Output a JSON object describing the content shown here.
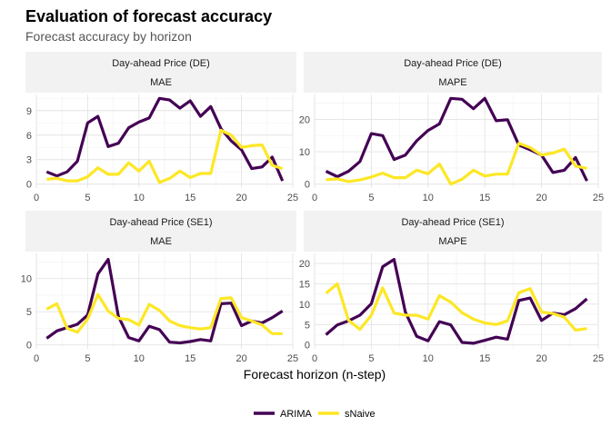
{
  "title": "Evaluation of forecast accuracy",
  "subtitle": "Forecast accuracy by horizon",
  "chart_data": {
    "type": "line",
    "xlabel": "Forecast horizon (n-step)",
    "ylabel": "",
    "legend": {
      "position": "bottom",
      "entries": [
        "ARIMA",
        "sNaive"
      ]
    },
    "colors": {
      "ARIMA": "#440154",
      "sNaive": "#FDE725"
    },
    "grid": true,
    "x": [
      1,
      2,
      3,
      4,
      5,
      6,
      7,
      8,
      9,
      10,
      11,
      12,
      13,
      14,
      15,
      16,
      17,
      18,
      19,
      20,
      21,
      22,
      23,
      24
    ],
    "xlim": [
      0,
      25
    ],
    "x_ticks": [
      0,
      5,
      10,
      15,
      20,
      25
    ],
    "panels": [
      {
        "strip": [
          "Day-ahead Price (DE)",
          "MAE"
        ],
        "ylim": [
          0,
          10.5
        ],
        "y_ticks": [
          0,
          3,
          6,
          9
        ],
        "series": [
          {
            "name": "ARIMA",
            "values": [
              1.5,
              1.0,
              1.5,
              2.8,
              7.5,
              8.3,
              4.6,
              5.0,
              6.9,
              7.6,
              8.1,
              10.5,
              10.3,
              9.3,
              10.2,
              8.3,
              9.5,
              6.8,
              5.3,
              4.2,
              1.9,
              2.1,
              3.3,
              0.4
            ]
          },
          {
            "name": "sNaive",
            "values": [
              0.6,
              0.7,
              0.4,
              0.4,
              0.9,
              2.0,
              1.2,
              1.2,
              2.6,
              1.6,
              2.8,
              0.2,
              0.7,
              1.6,
              0.8,
              1.3,
              1.3,
              6.6,
              6.0,
              4.5,
              4.7,
              4.8,
              2.3,
              1.9
            ]
          }
        ]
      },
      {
        "strip": [
          "Day-ahead Price (DE)",
          "MAPE"
        ],
        "ylim": [
          0,
          26.5
        ],
        "y_ticks": [
          0,
          10,
          20
        ],
        "series": [
          {
            "name": "ARIMA",
            "values": [
              4.0,
              2.3,
              4.0,
              7.0,
              15.6,
              15.0,
              7.6,
              9.0,
              13.4,
              16.6,
              18.6,
              26.5,
              26.2,
              23.3,
              26.5,
              19.6,
              19.9,
              12.1,
              10.6,
              9.0,
              3.6,
              4.3,
              8.2,
              1.0
            ]
          },
          {
            "name": "sNaive",
            "values": [
              1.4,
              1.6,
              0.8,
              1.3,
              2.2,
              3.4,
              2.0,
              2.0,
              4.3,
              3.2,
              6.2,
              0.0,
              1.5,
              4.3,
              2.5,
              3.1,
              3.1,
              12.6,
              11.3,
              9.0,
              9.6,
              10.8,
              5.6,
              4.9
            ]
          }
        ]
      },
      {
        "strip": [
          "Day-ahead Price (SE1)",
          "MAE"
        ],
        "ylim": [
          0,
          13.2
        ],
        "y_ticks": [
          0,
          5,
          10
        ],
        "series": [
          {
            "name": "ARIMA",
            "values": [
              1.0,
              2.1,
              2.6,
              3.1,
              4.5,
              10.7,
              12.9,
              4.3,
              1.1,
              0.6,
              2.8,
              2.3,
              0.4,
              0.3,
              0.5,
              0.8,
              0.6,
              6.2,
              6.3,
              2.9,
              3.6,
              3.3,
              4.1,
              5.1
            ]
          },
          {
            "name": "sNaive",
            "values": [
              5.4,
              6.2,
              2.5,
              1.9,
              3.9,
              7.6,
              5.1,
              4.0,
              3.8,
              3.0,
              6.1,
              5.2,
              3.6,
              2.9,
              2.6,
              2.4,
              2.6,
              7.0,
              7.1,
              4.1,
              3.6,
              3.0,
              1.7,
              1.7
            ]
          }
        ]
      },
      {
        "strip": [
          "Day-ahead Price (SE1)",
          "MAPE"
        ],
        "ylim": [
          0,
          21.5
        ],
        "y_ticks": [
          0,
          5,
          10,
          15,
          20
        ],
        "series": [
          {
            "name": "ARIMA",
            "values": [
              2.5,
              4.9,
              5.9,
              7.3,
              10.1,
              19.2,
              21.0,
              8.1,
              2.1,
              1.0,
              5.7,
              4.9,
              0.6,
              0.4,
              1.1,
              1.9,
              1.4,
              10.9,
              11.5,
              6.0,
              7.8,
              7.4,
              8.9,
              11.3
            ]
          },
          {
            "name": "sNaive",
            "values": [
              12.7,
              15.0,
              6.0,
              3.8,
              7.3,
              14.0,
              7.8,
              7.3,
              7.3,
              6.3,
              12.1,
              10.5,
              7.9,
              6.3,
              5.4,
              5.0,
              5.9,
              12.8,
              13.8,
              8.1,
              7.7,
              6.8,
              3.6,
              4.0
            ]
          }
        ]
      }
    ]
  }
}
